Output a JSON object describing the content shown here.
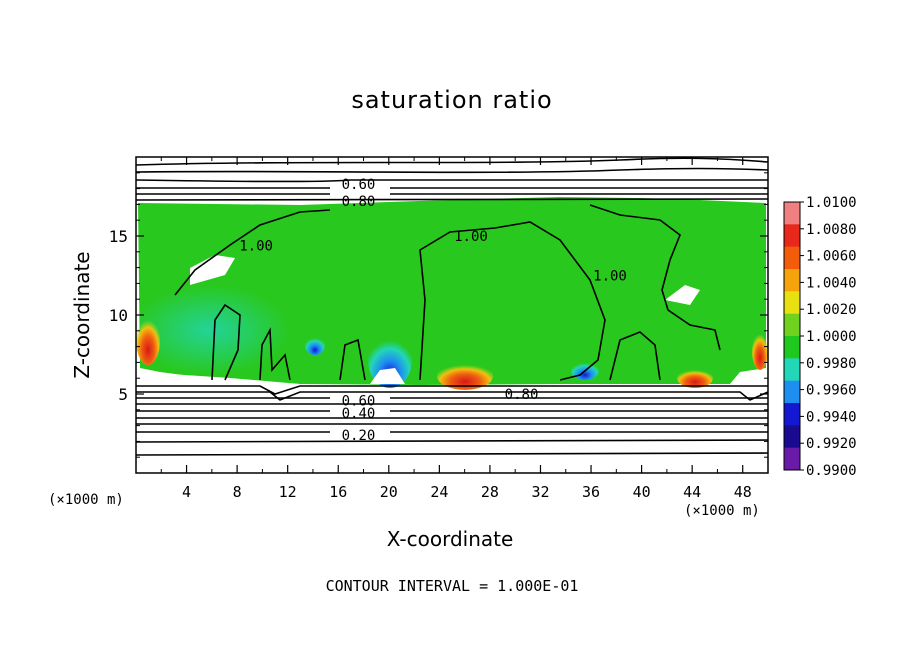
{
  "chart_data": {
    "type": "heatmap",
    "title": "saturation ratio",
    "xlabel": "X-coordinate",
    "ylabel": "Z-coordinate",
    "x_unit_left": "(×1000 m)",
    "x_unit_right": "(×1000 m)",
    "xlim": [
      0,
      50
    ],
    "ylim": [
      0,
      20
    ],
    "x_ticks": [
      4,
      8,
      12,
      16,
      20,
      24,
      28,
      32,
      36,
      40,
      44,
      48
    ],
    "y_ticks": [
      5,
      10,
      15
    ],
    "contour_interval_text": "CONTOUR INTERVAL = 1.000E-01",
    "colorbar": {
      "labels": [
        "1.0100",
        "1.0080",
        "1.0060",
        "1.0040",
        "1.0020",
        "1.0000",
        "0.9980",
        "0.9960",
        "0.9940",
        "0.9920",
        "0.9900"
      ],
      "colors": [
        "#f08080",
        "#e8281a",
        "#f25c0a",
        "#f4a40a",
        "#e8e010",
        "#6fd21e",
        "#1fc81e",
        "#22d6b8",
        "#1e8ef0",
        "#1418d0",
        "#1a0a90",
        "#6a1aa8"
      ]
    },
    "contour_labels": [
      {
        "text": "0.60",
        "x": 35.2,
        "y": 18.3
      },
      {
        "text": "0.80",
        "x": 35.2,
        "y": 17.2
      },
      {
        "text": "1.00",
        "x": 19.0,
        "y": 14.4
      },
      {
        "text": "1.00",
        "x": 53.0,
        "y": 15.0
      },
      {
        "text": "1.00",
        "x": 75.0,
        "y": 12.5
      },
      {
        "text": "0.80",
        "x": 61.0,
        "y": 5.0
      },
      {
        "text": "0.60",
        "x": 35.2,
        "y": 4.6
      },
      {
        "text": "0.40",
        "x": 35.2,
        "y": 3.8
      },
      {
        "text": "0.20",
        "x": 35.2,
        "y": 2.4
      }
    ]
  }
}
